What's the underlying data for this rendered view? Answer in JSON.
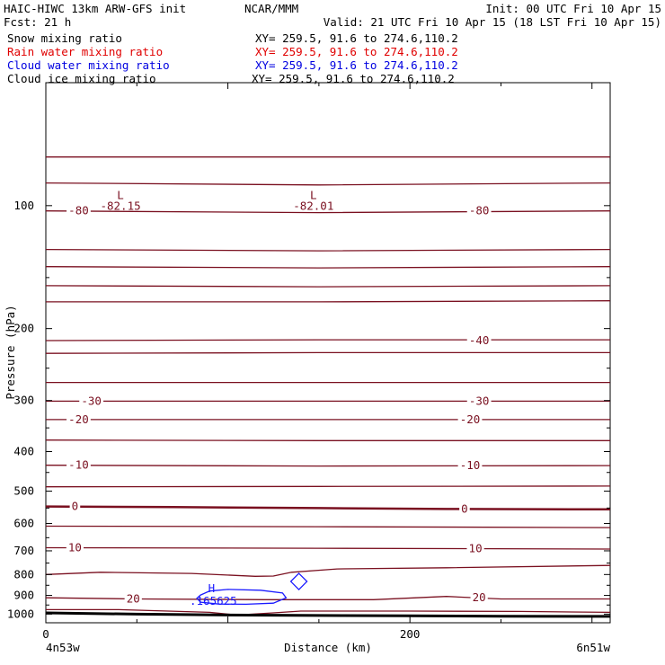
{
  "header": {
    "title_left": "HAIC-HIWC 13km ARW-GFS init",
    "title_center": "NCAR/MMM",
    "init": "Init: 00 UTC Fri 10 Apr 15",
    "fcst": "Fcst:    21 h",
    "valid": "Valid: 21 UTC Fri 10 Apr 15 (18 LST Fri 10 Apr 15)"
  },
  "fields": [
    {
      "name": "Snow mixing ratio",
      "xy": "XY= 259.5, 91.6 to 274.6,110.2",
      "color": "#000000"
    },
    {
      "name": "Rain water mixing ratio",
      "xy": "XY= 259.5, 91.6 to 274.6,110.2",
      "color": "#e00000"
    },
    {
      "name": "Cloud water mixing ratio",
      "xy": "XY= 259.5, 91.6 to 274.6,110.2",
      "color": "#0000e0"
    },
    {
      "name": "Cloud ice mixing ratio",
      "xy": "XY= 259.5, 91.6 to 274.6,110.2",
      "color": "#000000"
    }
  ],
  "colors": {
    "temperature": "#7a1020",
    "cloud_water": "#1a1aff",
    "terrain": "#000000",
    "frame": "#000000"
  },
  "chart_data": {
    "type": "cross-section",
    "xlabel": "Distance (km)",
    "ylabel": "Pressure (hPa)",
    "xlim": [
      0,
      310
    ],
    "ylim": [
      1050,
      50
    ],
    "yscale": "log",
    "x_ticks": [
      0,
      100,
      200,
      300
    ],
    "x_tick_labels": [
      "0",
      "",
      "200",
      ""
    ],
    "y_ticks": [
      100,
      200,
      300,
      400,
      500,
      600,
      700,
      800,
      900,
      1000
    ],
    "y_tick_labels": [
      "100",
      "200",
      "300",
      "400",
      "500",
      "600",
      "700",
      "800",
      "900",
      "1000"
    ],
    "endpoint_labels": {
      "left": "4n53w",
      "right": "6n51w"
    },
    "temperature_contours": {
      "interval": 5,
      "unit": "C",
      "lines": [
        {
          "x": [
            0,
            150,
            310
          ],
          "p": [
            76,
            76,
            76
          ]
        },
        {
          "x": [
            0,
            150,
            310
          ],
          "p": [
            88,
            89,
            88
          ]
        },
        {
          "x": [
            0,
            150,
            310
          ],
          "p": [
            103,
            104,
            103
          ]
        },
        {
          "x": [
            0,
            150,
            310
          ],
          "p": [
            128,
            129,
            128
          ]
        },
        {
          "x": [
            0,
            150,
            310
          ],
          "p": [
            141,
            142,
            141
          ]
        },
        {
          "x": [
            0,
            150,
            310
          ],
          "p": [
            157,
            158,
            157
          ]
        },
        {
          "x": [
            0,
            150,
            310
          ],
          "p": [
            172,
            172,
            171
          ]
        },
        {
          "x": [
            0,
            150,
            310
          ],
          "p": [
            214,
            213,
            213
          ]
        },
        {
          "x": [
            0,
            150,
            310
          ],
          "p": [
            230,
            229,
            229
          ]
        },
        {
          "x": [
            0,
            150,
            310
          ],
          "p": [
            271,
            271,
            271
          ]
        },
        {
          "x": [
            0,
            150,
            310
          ],
          "p": [
            301,
            301,
            301
          ]
        },
        {
          "x": [
            0,
            150,
            310
          ],
          "p": [
            334,
            334,
            334
          ]
        },
        {
          "x": [
            0,
            150,
            310
          ],
          "p": [
            375,
            376,
            376
          ]
        },
        {
          "x": [
            0,
            150,
            310
          ],
          "p": [
            432,
            434,
            433
          ]
        },
        {
          "x": [
            0,
            150,
            310
          ],
          "p": [
            488,
            487,
            486
          ]
        },
        {
          "x": [
            0,
            70,
            150,
            220,
            310
          ],
          "p": [
            545,
            547,
            550,
            553,
            554
          ],
          "bold": true
        },
        {
          "x": [
            0,
            150,
            310
          ],
          "p": [
            609,
            611,
            614
          ]
        },
        {
          "x": [
            0,
            150,
            310
          ],
          "p": [
            688,
            690,
            693
          ]
        },
        {
          "x": [
            0,
            30,
            80,
            115,
            125,
            135,
            160,
            220,
            310
          ],
          "p": [
            800,
            790,
            795,
            808,
            807,
            790,
            775,
            770,
            760
          ]
        },
        {
          "x": [
            0,
            50,
            120,
            180,
            220,
            250,
            310
          ],
          "p": [
            912,
            918,
            922,
            922,
            905,
            918,
            918
          ]
        },
        {
          "x": [
            0,
            40,
            90,
            105,
            125,
            140,
            200,
            260,
            310
          ],
          "p": [
            975,
            975,
            990,
            1005,
            993,
            983,
            983,
            985,
            990
          ]
        }
      ],
      "labels": [
        {
          "text": "-80",
          "x": 18,
          "p": 103
        },
        {
          "text": "-80",
          "x": 238,
          "p": 103
        },
        {
          "text": "-40",
          "x": 238,
          "p": 214
        },
        {
          "text": "-30",
          "x": 25,
          "p": 301
        },
        {
          "text": "-30",
          "x": 238,
          "p": 301
        },
        {
          "text": "-20",
          "x": 18,
          "p": 334
        },
        {
          "text": "-20",
          "x": 233,
          "p": 334
        },
        {
          "text": "-10",
          "x": 18,
          "p": 432
        },
        {
          "text": "-10",
          "x": 233,
          "p": 433
        },
        {
          "text": "0",
          "x": 16,
          "p": 545
        },
        {
          "text": "0",
          "x": 230,
          "p": 553
        },
        {
          "text": "10",
          "x": 16,
          "p": 688
        },
        {
          "text": "10",
          "x": 236,
          "p": 691
        },
        {
          "text": "20",
          "x": 48,
          "p": 918
        },
        {
          "text": "20",
          "x": 238,
          "p": 910
        }
      ],
      "extrema": [
        {
          "kind": "L",
          "value": "-82.15",
          "x": 41,
          "p": 88
        },
        {
          "kind": "L",
          "value": "-82.01",
          "x": 147,
          "p": 88
        }
      ]
    },
    "cloud_water": {
      "contour_x": [
        85,
        90,
        100,
        118,
        130,
        132,
        125,
        110,
        95,
        85,
        83,
        85
      ],
      "contour_p": [
        898,
        878,
        870,
        874,
        888,
        912,
        940,
        946,
        945,
        935,
        915,
        898
      ],
      "extrema": [
        {
          "kind": "H",
          "value": ".165625",
          "x": 91,
          "p": 892
        }
      ],
      "marker_x": 139,
      "marker_p": 832
    },
    "terrain": {
      "x": [
        0,
        50,
        100,
        150,
        200,
        250,
        310
      ],
      "p": [
        993,
        1000,
        1005,
        1008,
        1010,
        1012,
        1013
      ]
    }
  }
}
